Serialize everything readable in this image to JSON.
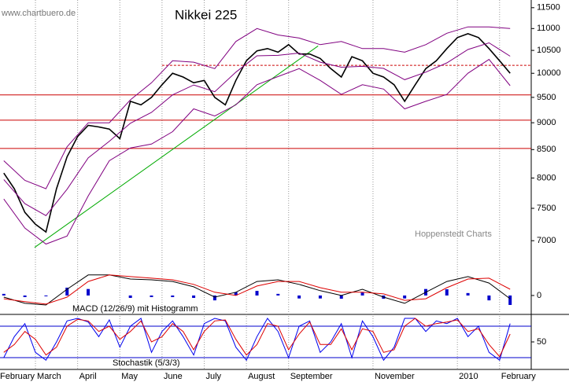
{
  "chart_data": [
    {
      "type": "line",
      "title": "Nikkei 225",
      "source": "www.chartbuero.de",
      "credit": "Hoppenstedt Charts",
      "log_scale": true,
      "ylim": [
        6560,
        11690
      ],
      "yticks": [
        7000,
        7500,
        8000,
        8500,
        9000,
        9500,
        10000,
        10500,
        11000,
        11500
      ],
      "xlim": [
        0.16,
        12.75
      ],
      "xticks": [
        {
          "value": 0,
          "label": "February"
        },
        {
          "value": 1,
          "label": "March"
        },
        {
          "value": 2,
          "label": "April"
        },
        {
          "value": 3,
          "label": "May"
        },
        {
          "value": 4,
          "label": "June"
        },
        {
          "value": 5,
          "label": "July"
        },
        {
          "value": 6,
          "label": "August"
        },
        {
          "value": 7,
          "label": "September"
        },
        {
          "value": 9,
          "label": "November"
        },
        {
          "value": 11,
          "label": "2010"
        },
        {
          "value": 12,
          "label": "February"
        }
      ],
      "series": [
        {
          "style": "line",
          "color": "#000000",
          "x": [
            0.25,
            0.5,
            0.75,
            1,
            1.25,
            1.5,
            1.75,
            2,
            2.25,
            2.5,
            2.75,
            3,
            3.25,
            3.5,
            3.75,
            4,
            4.25,
            4.5,
            4.75,
            5,
            5.25,
            5.5,
            5.75,
            6,
            6.25,
            6.5,
            6.75,
            7,
            7.25,
            7.5,
            7.75,
            8,
            8.25,
            8.5,
            8.75,
            9,
            9.25,
            9.5,
            9.75,
            10,
            10.25,
            10.5,
            10.75,
            11,
            11.25,
            11.5,
            11.75,
            12,
            12.25
          ],
          "values": [
            8085,
            7818,
            7435,
            7250,
            7130,
            7820,
            8370,
            8740,
            8950,
            8920,
            8880,
            8700,
            9420,
            9350,
            9500,
            9760,
            10000,
            9920,
            9800,
            9850,
            9500,
            9350,
            9850,
            10270,
            10490,
            10540,
            10460,
            10630,
            10420,
            10420,
            10320,
            10100,
            9920,
            10360,
            10270,
            10000,
            9920,
            9760,
            9420,
            9760,
            10100,
            10270,
            10540,
            10790,
            10880,
            10790,
            10540,
            10270,
            10000
          ]
        },
        {
          "style": "line",
          "color": "#800080",
          "x": [
            0.25,
            0.75,
            1.25,
            1.75,
            2.25,
            2.75,
            3.25,
            3.75,
            4.25,
            4.75,
            5.25,
            5.75,
            6.25,
            6.75,
            7.25,
            7.75,
            8.25,
            8.75,
            9.25,
            9.75,
            10.25,
            10.75,
            11.25,
            11.75,
            12.25
          ],
          "values": [
            8300,
            7960,
            7820,
            8550,
            9000,
            9000,
            9450,
            9800,
            10270,
            10240,
            10100,
            10700,
            11000,
            10850,
            10780,
            10630,
            10700,
            10540,
            10540,
            10460,
            10630,
            10890,
            11040,
            11040,
            11000
          ]
        },
        {
          "style": "line",
          "color": "#800080",
          "x": [
            0.25,
            0.75,
            1.25,
            1.75,
            2.25,
            2.75,
            3.25,
            3.75,
            4.25,
            4.75,
            5.25,
            5.75,
            6.25,
            6.75,
            7.25,
            7.75,
            8.25,
            8.75,
            9.25,
            9.75,
            10.25,
            10.75,
            11.25,
            11.75,
            12.25
          ],
          "values": [
            7975,
            7575,
            7385,
            7810,
            8350,
            8650,
            8990,
            9200,
            9550,
            9755,
            9615,
            10025,
            10380,
            10390,
            10440,
            10240,
            10130,
            10150,
            10105,
            9865,
            10025,
            10225,
            10520,
            10670,
            10370
          ]
        },
        {
          "style": "line",
          "color": "#800080",
          "x": [
            0.25,
            0.75,
            1.25,
            1.75,
            2.25,
            2.75,
            3.25,
            3.75,
            4.25,
            4.75,
            5.25,
            5.75,
            6.25,
            6.75,
            7.25,
            7.75,
            8.25,
            8.75,
            9.25,
            9.75,
            10.25,
            10.75,
            11.25,
            11.75,
            12.25
          ],
          "values": [
            7650,
            7190,
            6950,
            7070,
            7700,
            8300,
            8530,
            8600,
            8830,
            9270,
            9130,
            9350,
            9760,
            9930,
            10100,
            9850,
            9560,
            9760,
            9670,
            9270,
            9420,
            9560,
            10000,
            10300,
            9740
          ]
        }
      ],
      "hlines": [
        {
          "value": 9550,
          "color": "#cc0000"
        },
        {
          "value": 9050,
          "color": "#cc0000"
        },
        {
          "value": 8520,
          "color": "#cc0000"
        }
      ],
      "dashed_lines": [
        {
          "value": 10170,
          "from": 4.0,
          "color": "#cc0000"
        }
      ],
      "trendline": {
        "x": [
          0.98,
          7.7
        ],
        "y": [
          6900,
          10600
        ],
        "color": "#00aa00"
      }
    },
    {
      "type": "line",
      "title": "MACD (12/26/9) mit Histogramm",
      "ylim": [
        -350,
        450
      ],
      "yticks": [
        0
      ],
      "xlim": [
        0.16,
        12.75
      ],
      "series": [
        {
          "style": "bar",
          "color": "#0000cc",
          "x": [
            0.25,
            0.75,
            1.25,
            1.75,
            2.25,
            2.75,
            3.25,
            3.75,
            4.25,
            4.75,
            5.25,
            5.75,
            6.25,
            6.75,
            7.25,
            7.75,
            8.25,
            8.75,
            9.25,
            9.75,
            10.25,
            10.75,
            11.25,
            11.75,
            12.25
          ],
          "values": [
            30,
            -30,
            -15,
            145,
            120,
            0,
            -45,
            -30,
            -30,
            -45,
            -90,
            60,
            85,
            30,
            -55,
            -55,
            -60,
            55,
            -60,
            -55,
            120,
            115,
            45,
            -90,
            -175
          ]
        },
        {
          "style": "line",
          "color": "#000000",
          "x": [
            0.25,
            0.75,
            1.25,
            1.75,
            2.25,
            2.75,
            3.25,
            3.75,
            4.25,
            4.75,
            5.25,
            5.75,
            6.25,
            6.75,
            7.25,
            7.75,
            8.25,
            8.75,
            9.25,
            9.75,
            10.25,
            10.75,
            11.25,
            11.75,
            12.25
          ],
          "values": [
            -30,
            -145,
            -175,
            115,
            380,
            380,
            305,
            290,
            260,
            160,
            -30,
            60,
            260,
            290,
            205,
            90,
            0,
            115,
            -30,
            -145,
            60,
            260,
            350,
            230,
            -60
          ]
        },
        {
          "style": "line",
          "color": "#dd0000",
          "x": [
            0.25,
            0.75,
            1.25,
            1.75,
            2.25,
            2.75,
            3.25,
            3.75,
            4.25,
            4.75,
            5.25,
            5.75,
            6.25,
            6.75,
            7.25,
            7.75,
            8.25,
            8.75,
            9.25,
            9.75,
            10.25,
            10.75,
            11.25,
            11.75,
            12.25
          ],
          "values": [
            -60,
            -115,
            -160,
            -30,
            260,
            380,
            350,
            320,
            290,
            205,
            60,
            0,
            175,
            260,
            260,
            145,
            60,
            60,
            30,
            -90,
            -60,
            145,
            305,
            320,
            115
          ]
        }
      ]
    },
    {
      "type": "line",
      "title": "Stochastik (5/3/3)",
      "ylim": [
        -2.5,
        102.5
      ],
      "yticks": [
        50
      ],
      "xlim": [
        0.16,
        12.75
      ],
      "hlines": [
        {
          "value": 80,
          "color": "#0000cc"
        },
        {
          "value": 20,
          "color": "#0000cc"
        }
      ],
      "series": [
        {
          "style": "line",
          "color": "#0000ee",
          "x": [
            0.25,
            0.5,
            0.75,
            1,
            1.25,
            1.5,
            1.75,
            2,
            2.25,
            2.5,
            2.75,
            3,
            3.25,
            3.5,
            3.75,
            4,
            4.25,
            4.5,
            4.75,
            5,
            5.25,
            5.5,
            5.75,
            6,
            6.25,
            6.5,
            6.75,
            7,
            7.25,
            7.5,
            7.75,
            8,
            8.25,
            8.5,
            8.75,
            9,
            9.25,
            9.5,
            9.75,
            10,
            10.25,
            10.5,
            10.75,
            11,
            11.25,
            11.5,
            11.75,
            12,
            12.25
          ],
          "values": [
            20,
            60,
            85,
            30,
            15,
            50,
            90,
            95,
            88,
            60,
            92,
            40,
            80,
            95,
            30,
            70,
            90,
            60,
            25,
            85,
            95,
            90,
            40,
            15,
            60,
            95,
            70,
            20,
            80,
            90,
            30,
            50,
            85,
            20,
            90,
            60,
            15,
            40,
            95,
            95,
            70,
            90,
            85,
            95,
            60,
            80,
            30,
            15,
            85
          ]
        },
        {
          "style": "line",
          "color": "#dd0000",
          "x": [
            0.25,
            0.5,
            0.75,
            1,
            1.25,
            1.5,
            1.75,
            2,
            2.25,
            2.5,
            2.75,
            3,
            3.25,
            3.5,
            3.75,
            4,
            4.25,
            4.5,
            4.75,
            5,
            5.25,
            5.5,
            5.75,
            6,
            6.25,
            6.5,
            6.75,
            7,
            7.25,
            7.5,
            7.75,
            8,
            8.25,
            8.5,
            8.75,
            9,
            9.25,
            9.5,
            9.75,
            10,
            10.25,
            10.5,
            10.75,
            11,
            11.25,
            11.5,
            11.75,
            12,
            12.25
          ],
          "values": [
            30,
            45,
            70,
            55,
            25,
            40,
            80,
            93,
            90,
            70,
            80,
            55,
            70,
            90,
            50,
            60,
            85,
            70,
            35,
            70,
            90,
            92,
            55,
            25,
            45,
            85,
            80,
            35,
            65,
            88,
            45,
            45,
            75,
            35,
            75,
            70,
            30,
            35,
            80,
            95,
            80,
            85,
            88,
            92,
            70,
            75,
            45,
            22,
            65
          ]
        }
      ]
    }
  ]
}
